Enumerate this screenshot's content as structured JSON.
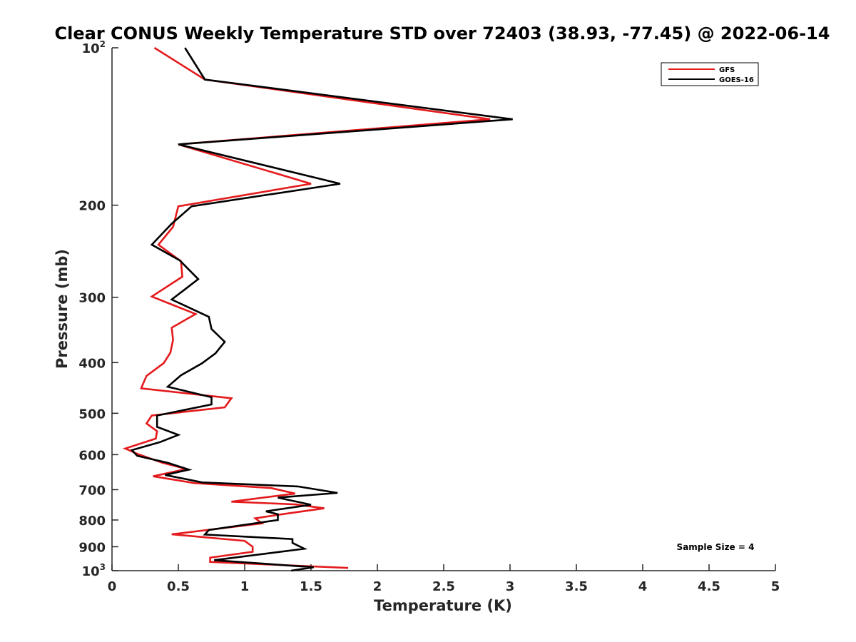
{
  "chart_data": {
    "type": "line",
    "title": "Clear CONUS Weekly Temperature STD over 72403 (38.93, -77.45) @ 2022-06-14",
    "xlabel": "Temperature (K)",
    "ylabel": "Pressure (mb)",
    "xlim": [
      0,
      5
    ],
    "ylim": [
      100,
      1000
    ],
    "yscale": "log",
    "y_reversed": true,
    "grid": false,
    "legend_position": "top-right",
    "xticks": [
      0,
      0.5,
      1,
      1.5,
      2,
      2.5,
      3,
      3.5,
      4,
      4.5,
      5
    ],
    "xtick_labels": [
      "0",
      "0.5",
      "1",
      "1.5",
      "2",
      "2.5",
      "3",
      "3.5",
      "4",
      "4.5",
      "5"
    ],
    "yticks": [
      100,
      200,
      300,
      400,
      500,
      600,
      700,
      800,
      900,
      1000
    ],
    "ytick_labels": [
      {
        "base": "10",
        "sup": "2"
      },
      {
        "base": "200",
        "sup": ""
      },
      {
        "base": "300",
        "sup": ""
      },
      {
        "base": "400",
        "sup": ""
      },
      {
        "base": "500",
        "sup": ""
      },
      {
        "base": "600",
        "sup": ""
      },
      {
        "base": "700",
        "sup": ""
      },
      {
        "base": "800",
        "sup": ""
      },
      {
        "base": "900",
        "sup": ""
      },
      {
        "base": "10",
        "sup": "3"
      }
    ],
    "annotation": "Sample Size = 4",
    "series": [
      {
        "name": "GFS",
        "color": "#e41a1c",
        "points": [
          [
            0.32,
            100
          ],
          [
            0.7,
            115
          ],
          [
            2.85,
            137
          ],
          [
            0.5,
            153
          ],
          [
            1.5,
            182
          ],
          [
            0.5,
            201
          ],
          [
            0.46,
            220
          ],
          [
            0.35,
            238
          ],
          [
            0.52,
            256
          ],
          [
            0.53,
            274
          ],
          [
            0.3,
            299
          ],
          [
            0.63,
            323
          ],
          [
            0.45,
            343
          ],
          [
            0.46,
            362
          ],
          [
            0.44,
            383
          ],
          [
            0.39,
            401
          ],
          [
            0.26,
            424
          ],
          [
            0.22,
            448
          ],
          [
            0.9,
            468
          ],
          [
            0.85,
            487
          ],
          [
            0.3,
            505
          ],
          [
            0.26,
            523
          ],
          [
            0.34,
            541
          ],
          [
            0.33,
            559
          ],
          [
            0.1,
            584
          ],
          [
            0.2,
            599
          ],
          [
            0.38,
            622
          ],
          [
            0.56,
            639
          ],
          [
            0.31,
            660
          ],
          [
            0.62,
            680
          ],
          [
            1.2,
            695
          ],
          [
            1.38,
            712
          ],
          [
            0.9,
            738
          ],
          [
            1.38,
            747
          ],
          [
            1.6,
            760
          ],
          [
            1.28,
            780
          ],
          [
            1.08,
            794
          ],
          [
            1.13,
            812
          ],
          [
            0.45,
            852
          ],
          [
            1.0,
            877
          ],
          [
            1.06,
            900
          ],
          [
            1.06,
            920
          ],
          [
            0.74,
            944
          ],
          [
            0.74,
            962
          ],
          [
            1.78,
            988
          ]
        ]
      },
      {
        "name": "GOES-16",
        "color": "#000000",
        "points": [
          [
            0.55,
            100
          ],
          [
            0.7,
            115
          ],
          [
            3.02,
            137
          ],
          [
            0.5,
            153
          ],
          [
            1.72,
            182
          ],
          [
            0.6,
            201
          ],
          [
            0.45,
            217
          ],
          [
            0.3,
            238
          ],
          [
            0.51,
            255
          ],
          [
            0.65,
            277
          ],
          [
            0.45,
            303
          ],
          [
            0.73,
            327
          ],
          [
            0.75,
            345
          ],
          [
            0.85,
            365
          ],
          [
            0.78,
            384
          ],
          [
            0.68,
            401
          ],
          [
            0.52,
            423
          ],
          [
            0.42,
            445
          ],
          [
            0.75,
            466
          ],
          [
            0.75,
            481
          ],
          [
            0.34,
            505
          ],
          [
            0.34,
            531
          ],
          [
            0.5,
            550
          ],
          [
            0.36,
            568
          ],
          [
            0.15,
            588
          ],
          [
            0.19,
            603
          ],
          [
            0.42,
            622
          ],
          [
            0.58,
            641
          ],
          [
            0.4,
            656
          ],
          [
            0.68,
            678
          ],
          [
            1.4,
            690
          ],
          [
            1.7,
            710
          ],
          [
            1.25,
            725
          ],
          [
            1.5,
            748
          ],
          [
            1.16,
            770
          ],
          [
            1.25,
            780
          ],
          [
            1.25,
            800
          ],
          [
            0.73,
            836
          ],
          [
            0.7,
            853
          ],
          [
            1.36,
            870
          ],
          [
            1.36,
            885
          ],
          [
            1.45,
            908
          ],
          [
            0.77,
            955
          ],
          [
            1.52,
            985
          ],
          [
            1.35,
            1000
          ]
        ]
      }
    ]
  }
}
